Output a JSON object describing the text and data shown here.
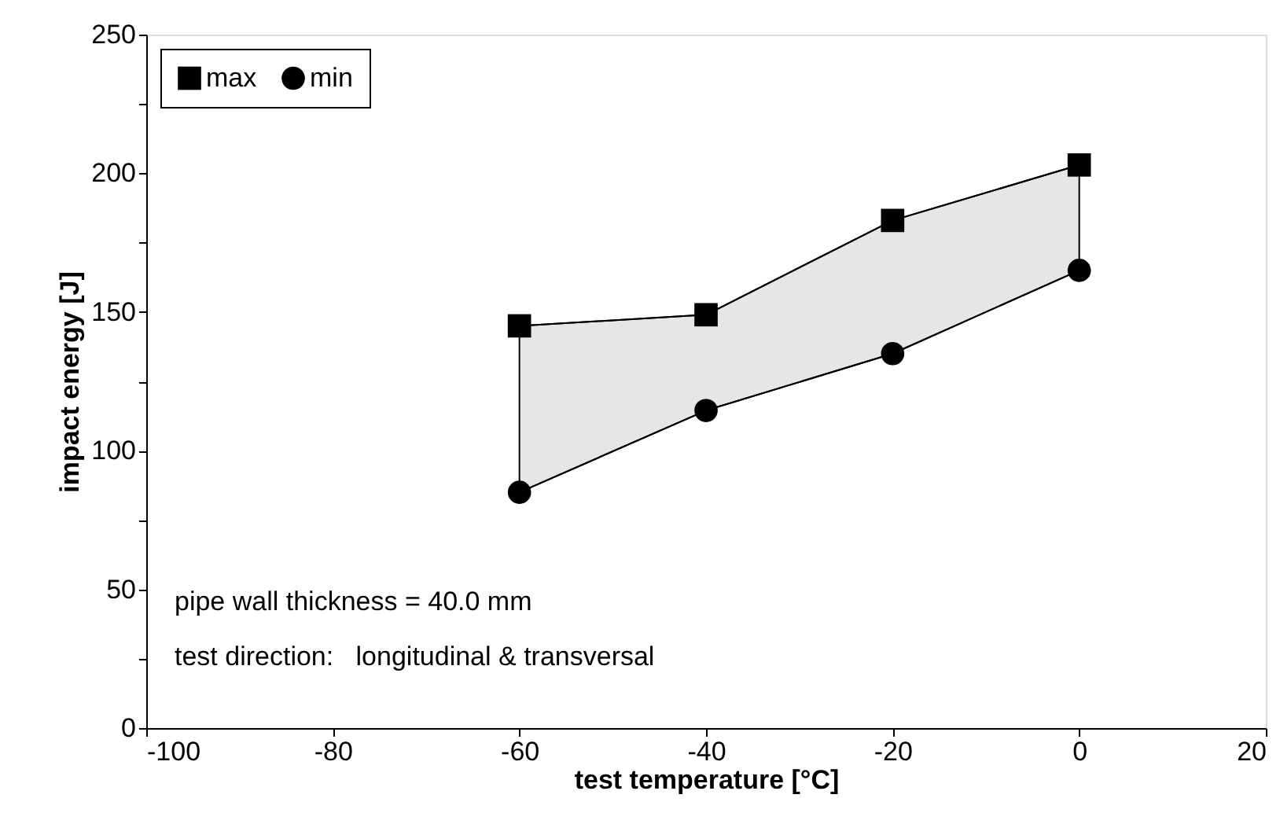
{
  "chart_data": {
    "type": "line",
    "xlabel": "test temperature [°C]",
    "ylabel": "impact energy [J]",
    "x": [
      -60,
      -40,
      -20,
      0
    ],
    "series": [
      {
        "name": "max",
        "color": "#000000",
        "marker": "square",
        "values": [
          145,
          149,
          183,
          203
        ],
        "lower": [
          85,
          114.5,
          135,
          165
        ],
        "upper": [
          145,
          149,
          183,
          203
        ]
      },
      {
        "name": "min",
        "color": "#000000",
        "marker": "circle",
        "values": [
          85,
          114.5,
          135,
          165
        ]
      }
    ],
    "xlim": [
      -100,
      20
    ],
    "xticks": [
      -100,
      -80,
      -60,
      -40,
      -20,
      0,
      20
    ],
    "ylim": [
      0,
      250
    ],
    "yticks": [
      0,
      {
        "value": 25,
        "label": null
      },
      50,
      {
        "value": 75,
        "label": null
      },
      100,
      {
        "value": 125,
        "label": null
      },
      150,
      {
        "value": 175,
        "label": null
      },
      200,
      {
        "value": 225,
        "label": null
      },
      250
    ],
    "annotations": [
      "pipe wall thickness = 40.0 mm",
      "test direction:   longitudinal & transversal"
    ],
    "grid": false,
    "legend": "top left"
  }
}
